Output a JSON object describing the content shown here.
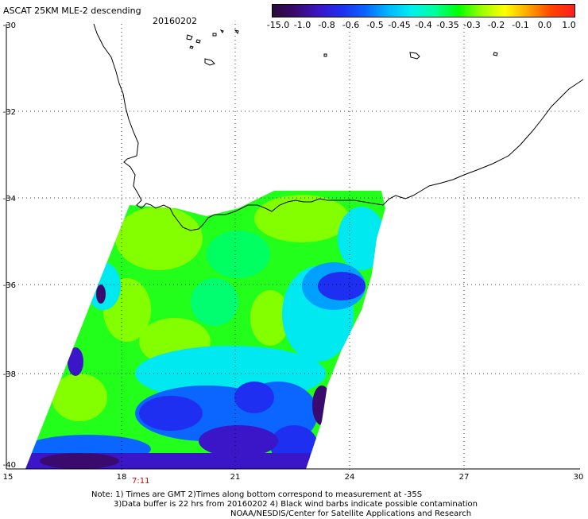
{
  "header": {
    "title": "ASCAT 25KM MLE-2 descending",
    "date": "20160202"
  },
  "colorbar": {
    "labels": [
      "-15.0",
      "-1.0",
      "-0.8",
      "-0.6",
      "-0.5",
      "-0.45",
      "-0.4",
      "-0.35",
      "-0.3",
      "-0.2",
      "-0.1",
      "0.0",
      "1.0"
    ],
    "colors": [
      "#2a0a3a",
      "#3b0a6e",
      "#3a16c8",
      "#1f2ff2",
      "#0a66ff",
      "#00b7ff",
      "#00f0ef",
      "#00ff9a",
      "#00ff00",
      "#9cff00",
      "#ffff00",
      "#ffa500",
      "#ff4400",
      "#ff1e1e"
    ]
  },
  "axes": {
    "lon_ticks": [
      "15",
      "18",
      "21",
      "24",
      "27",
      "30"
    ],
    "lat_ticks": [
      "-30",
      "-32",
      "-34",
      "-36",
      "-38",
      "-40"
    ]
  },
  "time_label": "7:11",
  "notes": {
    "line1": "Note: 1) Times are GMT 2)Times along bottom correspond to measurement at -35S",
    "line2": "3)Data buffer is 22 hrs from 20160202 4) Black wind barbs indicate possible contamination",
    "line3": "NOAA/NESDIS/Center for Satellite Applications and Research"
  }
}
